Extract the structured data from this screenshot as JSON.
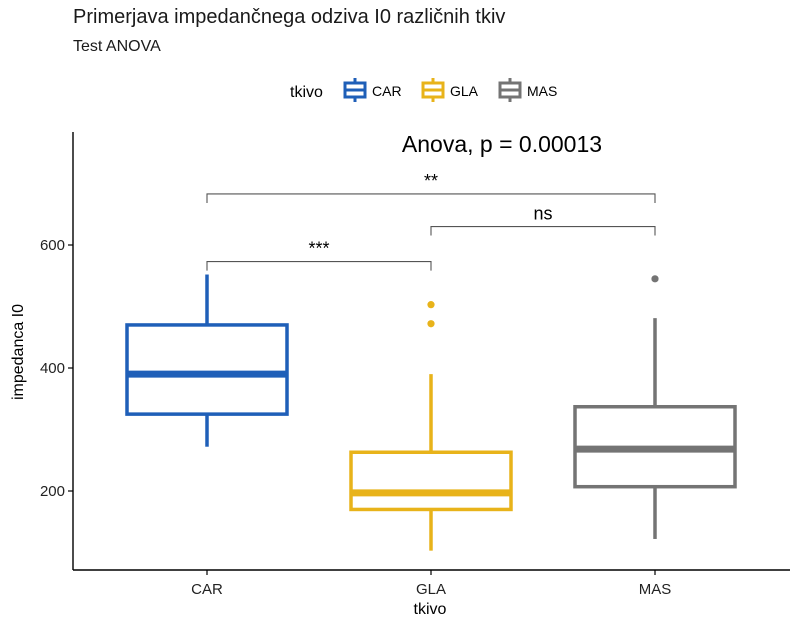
{
  "chart_data": {
    "type": "boxplot",
    "title": "Primerjava impedančnega odziva I0 različnih tkiv",
    "subtitle": "Test ANOVA",
    "xlabel": "tkivo",
    "ylabel": "impedanca I0",
    "categories": [
      "CAR",
      "GLA",
      "MAS"
    ],
    "ylim": [
      60,
      760
    ],
    "yticks": [
      200,
      400,
      600
    ],
    "legend": {
      "title": "tkivo",
      "position": "top",
      "entries": [
        "CAR",
        "GLA",
        "MAS"
      ]
    },
    "colors": {
      "CAR": "#1f5fb8",
      "GLA": "#e8b31a",
      "MAS": "#747474"
    },
    "boxes": [
      {
        "category": "CAR",
        "min": 272,
        "q1": 325,
        "median": 390,
        "q3": 470,
        "max": 552,
        "outliers": []
      },
      {
        "category": "GLA",
        "min": 103,
        "q1": 170,
        "median": 197,
        "q3": 263,
        "max": 390,
        "outliers": [
          472,
          503
        ]
      },
      {
        "category": "MAS",
        "min": 122,
        "q1": 207,
        "median": 268,
        "q3": 337,
        "max": 481,
        "outliers": [
          545
        ]
      }
    ],
    "test_label": "Anova, p = 0.00013",
    "comparisons": [
      {
        "group1": "CAR",
        "group2": "GLA",
        "label": "***",
        "y": 573
      },
      {
        "group1": "GLA",
        "group2": "MAS",
        "label": "ns",
        "y": 630
      },
      {
        "group1": "CAR",
        "group2": "MAS",
        "label": "**",
        "y": 683
      }
    ],
    "grid": false
  }
}
